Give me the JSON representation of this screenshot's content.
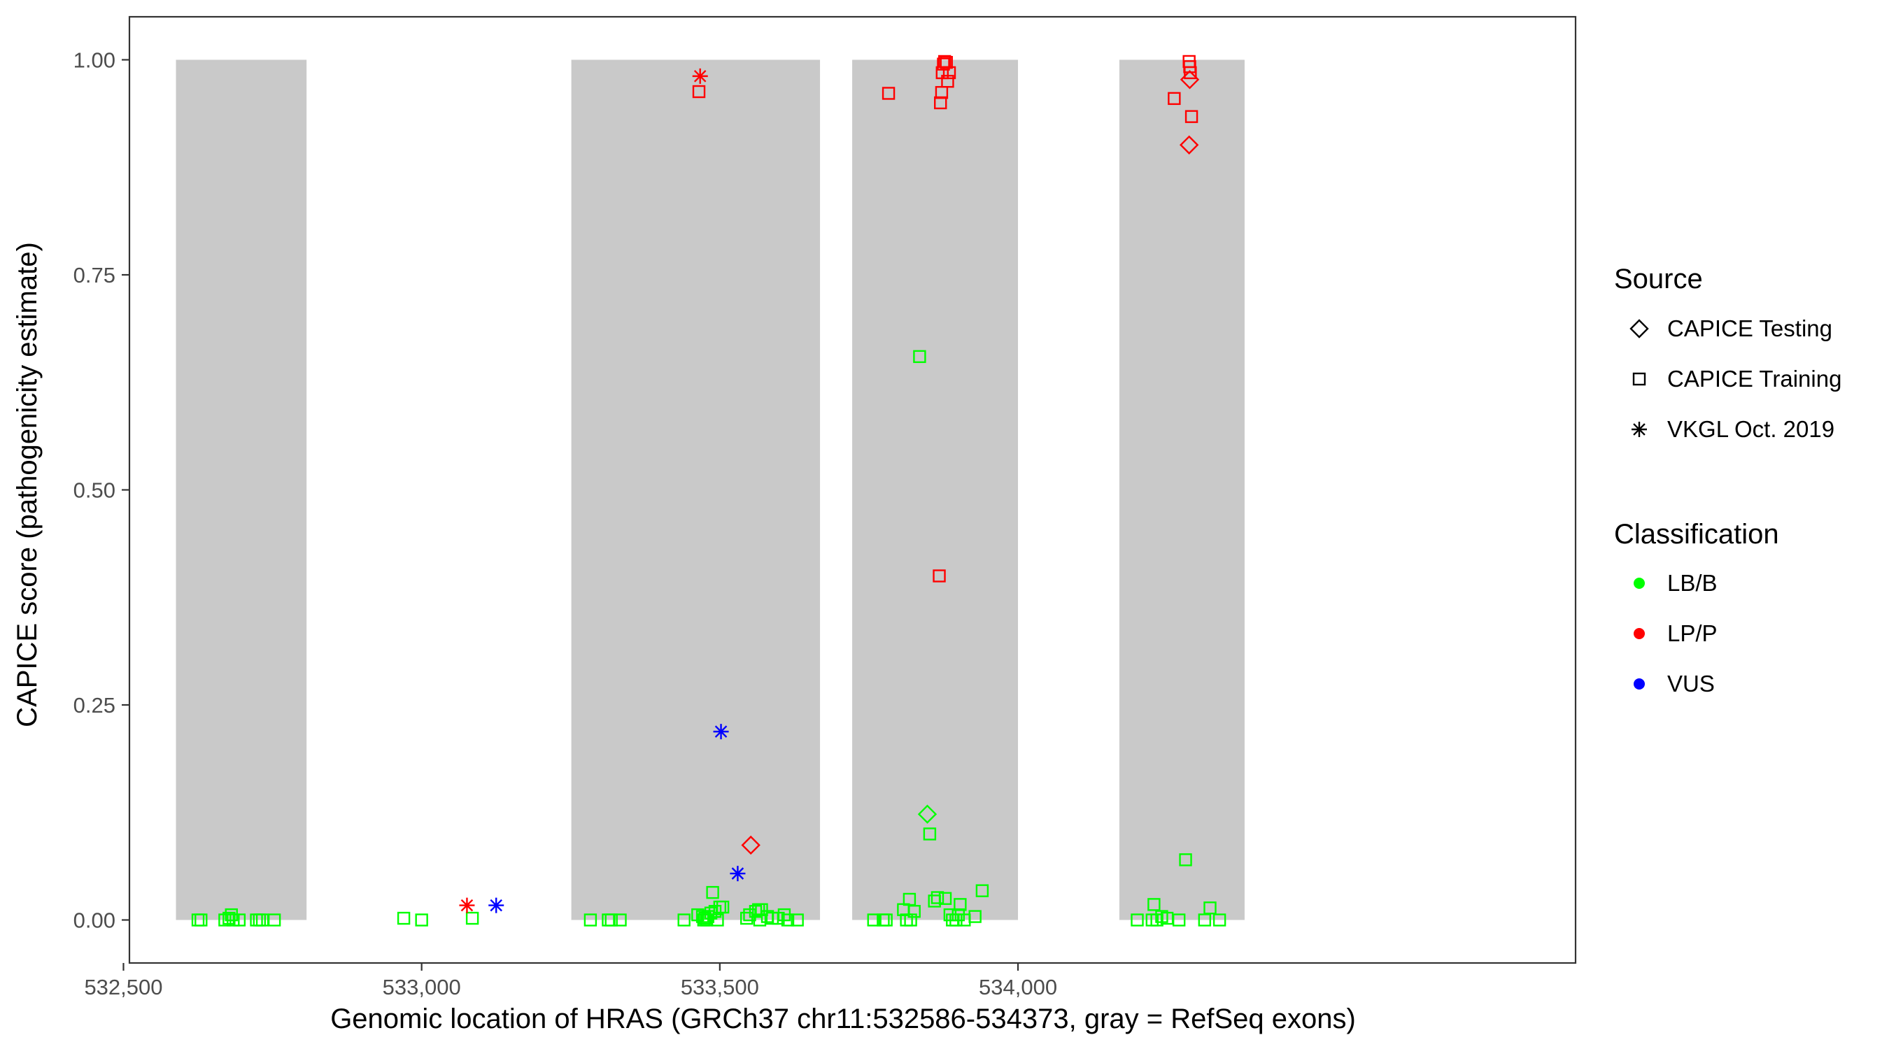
{
  "chart_data": {
    "type": "scatter",
    "title": "",
    "xlabel": "Genomic location of HRAS (GRCh37 chr11:532586-534373, gray = RefSeq exons)",
    "ylabel": "CAPICE score (pathogenicity estimate)",
    "xlim": [
      532510,
      534935
    ],
    "ylim": [
      -0.05,
      1.05
    ],
    "x_ticks": [
      532500,
      533000,
      533500,
      534000
    ],
    "x_tick_labels": [
      "532,500",
      "533,000",
      "533,500",
      "534,000"
    ],
    "y_ticks": [
      0,
      0.25,
      0.5,
      0.75,
      1
    ],
    "y_tick_labels": [
      "0.00",
      "0.25",
      "0.50",
      "0.75",
      "1.00"
    ],
    "grid": false,
    "exons": [
      {
        "start": 532588,
        "end": 532807
      },
      {
        "start": 533251,
        "end": 533668
      },
      {
        "start": 533722,
        "end": 534000
      },
      {
        "start": 534170,
        "end": 534380
      }
    ],
    "legend_placement": "right",
    "legend_source": {
      "title": "Source",
      "items": [
        {
          "label": "CAPICE Testing",
          "shape": "diamond"
        },
        {
          "label": "CAPICE Training",
          "shape": "square"
        },
        {
          "label": "VKGL Oct. 2019",
          "shape": "star"
        }
      ]
    },
    "legend_classification": {
      "title": "Classification",
      "items": [
        {
          "label": "LB/B",
          "color": "#00ff00"
        },
        {
          "label": "LP/P",
          "color": "#ff0000"
        },
        {
          "label": "VUS",
          "color": "#0000ff"
        }
      ]
    },
    "series": [
      {
        "source": "CAPICE Training",
        "classification": "LB/B",
        "color": "#00ff00",
        "shape": "square",
        "points": [
          {
            "x": 532625,
            "y": 0.0
          },
          {
            "x": 532630,
            "y": 0.0
          },
          {
            "x": 532670,
            "y": 0.0
          },
          {
            "x": 532677,
            "y": 0.002
          },
          {
            "x": 532681,
            "y": 0.006
          },
          {
            "x": 532684,
            "y": 0.0
          },
          {
            "x": 532694,
            "y": 0.0
          },
          {
            "x": 532723,
            "y": 0.0
          },
          {
            "x": 532728,
            "y": 0.0
          },
          {
            "x": 532733,
            "y": 0.0
          },
          {
            "x": 532753,
            "y": 0.0
          },
          {
            "x": 532970,
            "y": 0.002
          },
          {
            "x": 533000,
            "y": 0.0
          },
          {
            "x": 533085,
            "y": 0.002
          },
          {
            "x": 533283,
            "y": 0.0
          },
          {
            "x": 533313,
            "y": 0.0
          },
          {
            "x": 533318,
            "y": 0.0
          },
          {
            "x": 533333,
            "y": 0.0
          },
          {
            "x": 533440,
            "y": 0.0
          },
          {
            "x": 533463,
            "y": 0.006
          },
          {
            "x": 533471,
            "y": 0.004
          },
          {
            "x": 533475,
            "y": 0.002
          },
          {
            "x": 533480,
            "y": 0.004
          },
          {
            "x": 533485,
            "y": 0.008
          },
          {
            "x": 533488,
            "y": 0.032
          },
          {
            "x": 533492,
            "y": 0.01
          },
          {
            "x": 533496,
            "y": 0.0
          },
          {
            "x": 533500,
            "y": 0.015
          },
          {
            "x": 533505,
            "y": 0.015
          },
          {
            "x": 533473,
            "y": 0.0
          },
          {
            "x": 533478,
            "y": 0.0
          },
          {
            "x": 533545,
            "y": 0.002
          },
          {
            "x": 533550,
            "y": 0.006
          },
          {
            "x": 533560,
            "y": 0.01
          },
          {
            "x": 533565,
            "y": 0.012
          },
          {
            "x": 533570,
            "y": 0.012
          },
          {
            "x": 533567,
            "y": 0.0
          },
          {
            "x": 533580,
            "y": 0.004
          },
          {
            "x": 533588,
            "y": 0.002
          },
          {
            "x": 533598,
            "y": 0.002
          },
          {
            "x": 533608,
            "y": 0.006
          },
          {
            "x": 533614,
            "y": 0.0
          },
          {
            "x": 533630,
            "y": 0.0
          },
          {
            "x": 533758,
            "y": 0.0
          },
          {
            "x": 533774,
            "y": 0.0
          },
          {
            "x": 533779,
            "y": 0.0
          },
          {
            "x": 533808,
            "y": 0.012
          },
          {
            "x": 533813,
            "y": 0.0
          },
          {
            "x": 533820,
            "y": 0.0
          },
          {
            "x": 533818,
            "y": 0.024
          },
          {
            "x": 533826,
            "y": 0.01
          },
          {
            "x": 533835,
            "y": 0.655
          },
          {
            "x": 533852,
            "y": 0.1
          },
          {
            "x": 533860,
            "y": 0.022
          },
          {
            "x": 533865,
            "y": 0.026
          },
          {
            "x": 533878,
            "y": 0.025
          },
          {
            "x": 533886,
            "y": 0.006
          },
          {
            "x": 533890,
            "y": 0.0
          },
          {
            "x": 533896,
            "y": 0.0
          },
          {
            "x": 533900,
            "y": 0.006
          },
          {
            "x": 533903,
            "y": 0.018
          },
          {
            "x": 533910,
            "y": 0.0
          },
          {
            "x": 533928,
            "y": 0.004
          },
          {
            "x": 533940,
            "y": 0.034
          },
          {
            "x": 534200,
            "y": 0.0
          },
          {
            "x": 534225,
            "y": 0.0
          },
          {
            "x": 534228,
            "y": 0.018
          },
          {
            "x": 534233,
            "y": 0.0
          },
          {
            "x": 534241,
            "y": 0.004
          },
          {
            "x": 534250,
            "y": 0.002
          },
          {
            "x": 534270,
            "y": 0.0
          },
          {
            "x": 534281,
            "y": 0.07
          },
          {
            "x": 534313,
            "y": 0.0
          },
          {
            "x": 534322,
            "y": 0.014
          },
          {
            "x": 534338,
            "y": 0.0
          }
        ]
      },
      {
        "source": "CAPICE Training",
        "classification": "LP/P",
        "color": "#ff0000",
        "shape": "square",
        "points": [
          {
            "x": 533465,
            "y": 0.963
          },
          {
            "x": 533783,
            "y": 0.961
          },
          {
            "x": 533868,
            "y": 0.4
          },
          {
            "x": 533870,
            "y": 0.95
          },
          {
            "x": 533872,
            "y": 0.962
          },
          {
            "x": 533873,
            "y": 0.985
          },
          {
            "x": 533875,
            "y": 0.995
          },
          {
            "x": 533877,
            "y": 0.998
          },
          {
            "x": 533880,
            "y": 0.997
          },
          {
            "x": 533882,
            "y": 0.975
          },
          {
            "x": 533885,
            "y": 0.985
          },
          {
            "x": 534262,
            "y": 0.955
          },
          {
            "x": 534287,
            "y": 0.998
          },
          {
            "x": 534288,
            "y": 0.992
          },
          {
            "x": 534289,
            "y": 0.985
          },
          {
            "x": 534291,
            "y": 0.934
          }
        ]
      },
      {
        "source": "CAPICE Testing",
        "classification": "LB/B",
        "color": "#00ff00",
        "shape": "diamond",
        "points": [
          {
            "x": 533848,
            "y": 0.123
          }
        ]
      },
      {
        "source": "CAPICE Testing",
        "classification": "LP/P",
        "color": "#ff0000",
        "shape": "diamond",
        "points": [
          {
            "x": 533552,
            "y": 0.087
          },
          {
            "x": 534288,
            "y": 0.977
          },
          {
            "x": 534287,
            "y": 0.901
          }
        ]
      },
      {
        "source": "VKGL Oct. 2019",
        "classification": "LP/P",
        "color": "#ff0000",
        "shape": "star",
        "points": [
          {
            "x": 533076,
            "y": 0.017
          },
          {
            "x": 533467,
            "y": 0.981
          }
        ]
      },
      {
        "source": "VKGL Oct. 2019",
        "classification": "VUS",
        "color": "#0000ff",
        "shape": "star",
        "points": [
          {
            "x": 533125,
            "y": 0.017
          },
          {
            "x": 533502,
            "y": 0.219
          },
          {
            "x": 533530,
            "y": 0.054
          }
        ]
      }
    ]
  }
}
